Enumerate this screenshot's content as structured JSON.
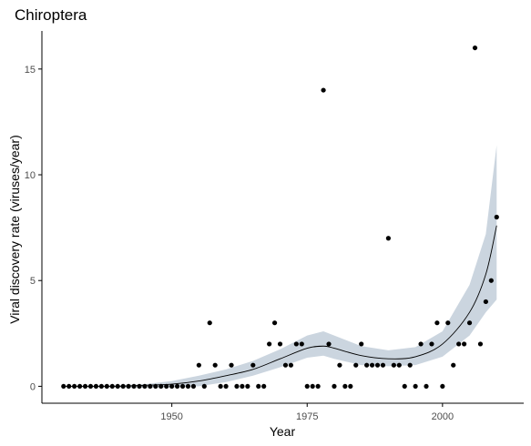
{
  "chart_data": {
    "type": "scatter",
    "title": "Chiroptera",
    "xlabel": "Year",
    "ylabel": "Viral discovery rate (viruses/year)",
    "xlim": [
      1926,
      2015
    ],
    "ylim": [
      -0.8,
      16.8
    ],
    "x_ticks": [
      1950,
      1975,
      2000
    ],
    "y_ticks": [
      0,
      5,
      10,
      15
    ],
    "grid": false,
    "legend": "none",
    "colors": {
      "points": "#000000",
      "fit_line": "#000000",
      "ribbon": "#cbd5df",
      "axis": "#000000",
      "tick_label": "#4d4d4d"
    },
    "points": {
      "x": [
        1930,
        1931,
        1932,
        1933,
        1934,
        1935,
        1936,
        1937,
        1938,
        1939,
        1940,
        1941,
        1942,
        1943,
        1944,
        1945,
        1946,
        1947,
        1948,
        1949,
        1950,
        1951,
        1952,
        1953,
        1954,
        1955,
        1956,
        1957,
        1958,
        1959,
        1960,
        1961,
        1962,
        1963,
        1964,
        1965,
        1966,
        1967,
        1968,
        1969,
        1970,
        1971,
        1972,
        1973,
        1974,
        1975,
        1976,
        1977,
        1978,
        1979,
        1980,
        1981,
        1982,
        1983,
        1984,
        1985,
        1986,
        1987,
        1988,
        1989,
        1990,
        1991,
        1992,
        1993,
        1994,
        1995,
        1996,
        1997,
        1998,
        1999,
        2000,
        2001,
        2002,
        2003,
        2004,
        2005,
        2006,
        2007,
        2008,
        2009,
        2010
      ],
      "y": [
        0,
        0,
        0,
        0,
        0,
        0,
        0,
        0,
        0,
        0,
        0,
        0,
        0,
        0,
        0,
        0,
        0,
        0,
        0,
        0,
        0,
        0,
        0,
        0,
        0,
        1,
        0,
        3,
        1,
        0,
        0,
        1,
        0,
        0,
        0,
        1,
        0,
        0,
        2,
        3,
        2,
        1,
        1,
        2,
        2,
        0,
        0,
        0,
        14,
        2,
        0,
        1,
        0,
        0,
        1,
        2,
        1,
        1,
        1,
        1,
        7,
        1,
        1,
        0,
        1,
        0,
        2,
        0,
        2,
        3,
        0,
        3,
        1,
        2,
        2,
        3,
        16,
        2,
        4,
        5,
        8
      ]
    },
    "fit": {
      "x": [
        1930,
        1935,
        1940,
        1945,
        1950,
        1955,
        1960,
        1965,
        1970,
        1975,
        1978,
        1980,
        1985,
        1990,
        1995,
        2000,
        2005,
        2008,
        2010
      ],
      "y": [
        0,
        0,
        0,
        0.05,
        0.1,
        0.25,
        0.5,
        0.8,
        1.3,
        1.8,
        1.9,
        1.8,
        1.45,
        1.3,
        1.4,
        2,
        3.5,
        5.3,
        7.6
      ],
      "lower": [
        -0.02,
        -0.03,
        -0.05,
        -0.05,
        -0.05,
        0.0,
        0.2,
        0.5,
        0.9,
        1.35,
        1.45,
        1.3,
        1.0,
        0.95,
        1.0,
        1.4,
        2.4,
        3.5,
        4.1
      ],
      "upper": [
        0.02,
        0.03,
        0.05,
        0.1,
        0.25,
        0.5,
        0.8,
        1.2,
        1.75,
        2.4,
        2.6,
        2.4,
        1.9,
        1.7,
        1.85,
        2.6,
        4.8,
        7.2,
        11.4
      ]
    }
  }
}
